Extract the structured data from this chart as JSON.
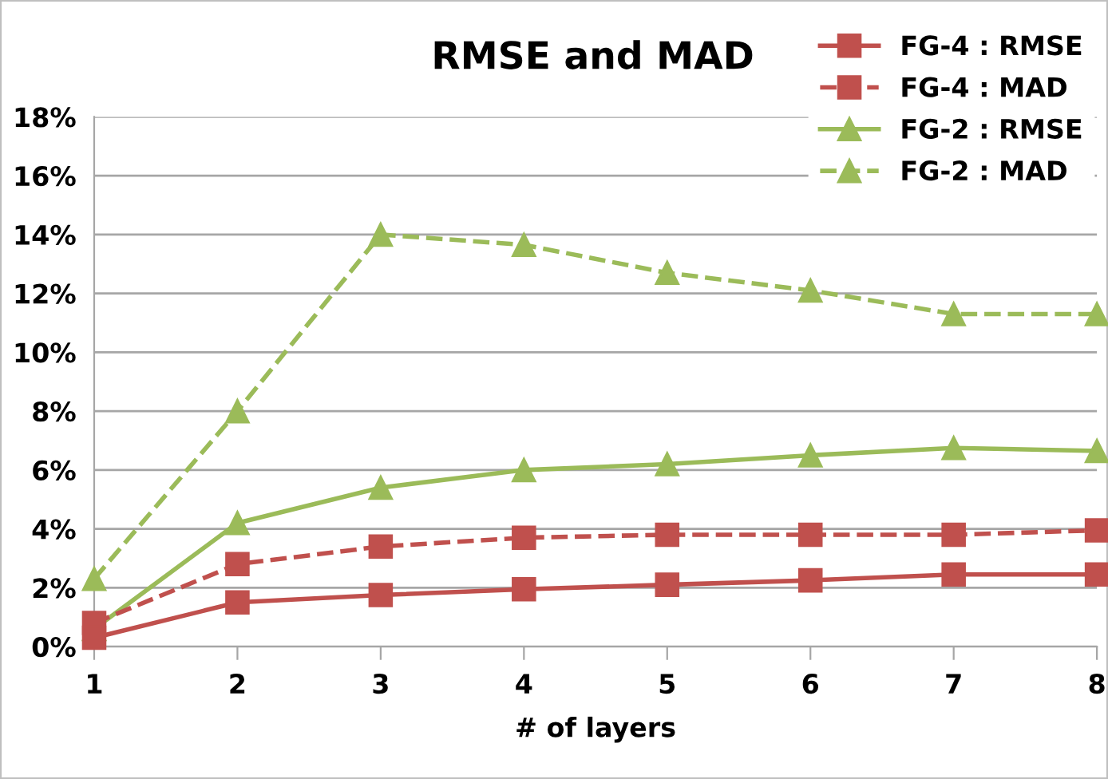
{
  "chart_data": {
    "type": "line",
    "title": "RMSE and MAD",
    "xlabel": "# of layers",
    "x": [
      1,
      2,
      3,
      4,
      5,
      6,
      7,
      8
    ],
    "series": [
      {
        "name": "FG-4 : RMSE",
        "color": "#c0504d",
        "marker": "square",
        "line_style": "solid",
        "values": [
          0.3,
          1.5,
          1.75,
          1.95,
          2.1,
          2.25,
          2.45,
          2.45
        ]
      },
      {
        "name": "FG-4 : MAD",
        "color": "#c0504d",
        "marker": "square",
        "line_style": "dashed",
        "values": [
          0.8,
          2.8,
          3.4,
          3.7,
          3.8,
          3.8,
          3.8,
          3.95
        ]
      },
      {
        "name": "FG-2 : RMSE",
        "color": "#9bbb59",
        "marker": "triangle",
        "line_style": "solid",
        "values": [
          0.6,
          4.2,
          5.4,
          6.0,
          6.2,
          6.5,
          6.75,
          6.65
        ]
      },
      {
        "name": "FG-2 : MAD",
        "color": "#9bbb59",
        "marker": "triangle",
        "line_style": "dashed",
        "values": [
          2.3,
          8.0,
          14.0,
          13.65,
          12.7,
          12.1,
          11.3,
          11.3
        ]
      }
    ],
    "xlim": [
      1,
      8
    ],
    "xticks": [
      1,
      2,
      3,
      4,
      5,
      6,
      7,
      8
    ],
    "ylim": [
      0,
      18
    ],
    "yticks": [
      {
        "value": 0,
        "label": "0%"
      },
      {
        "value": 2,
        "label": "2%"
      },
      {
        "value": 4,
        "label": "4%"
      },
      {
        "value": 6,
        "label": "6%"
      },
      {
        "value": 8,
        "label": "8%"
      },
      {
        "value": 10,
        "label": "10%"
      },
      {
        "value": 12,
        "label": "12%"
      },
      {
        "value": 14,
        "label": "14%"
      },
      {
        "value": 16,
        "label": "16%"
      },
      {
        "value": 18,
        "label": "18%"
      }
    ],
    "grid": "y",
    "legend": "top right"
  }
}
